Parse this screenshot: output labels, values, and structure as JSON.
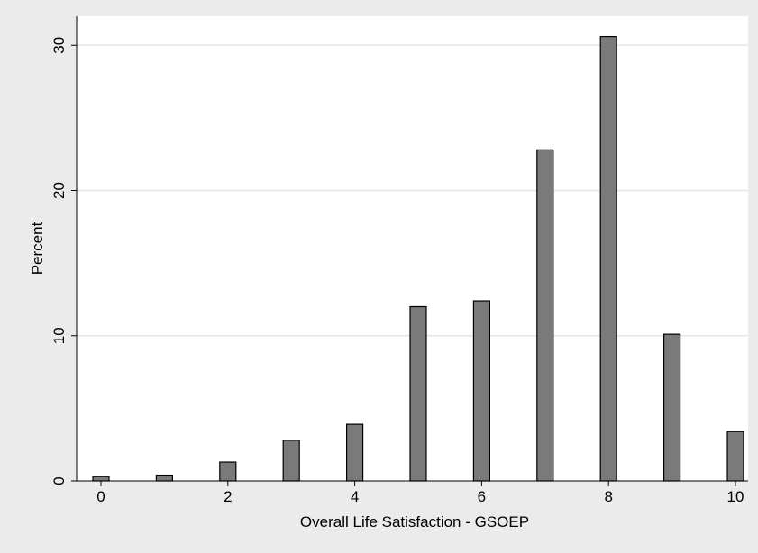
{
  "chart_data": {
    "type": "bar",
    "xlabel": "Overall Life Satisfaction - GSOEP",
    "ylabel": "Percent",
    "x": [
      0,
      1,
      2,
      3,
      4,
      5,
      6,
      7,
      8,
      9,
      10
    ],
    "values": [
      0.3,
      0.4,
      1.3,
      2.8,
      3.9,
      12.0,
      12.4,
      22.8,
      30.6,
      10.1,
      3.4
    ],
    "xlim": [
      -0.3,
      10.3
    ],
    "ylim": [
      0,
      32
    ],
    "x_ticks": [
      0,
      2,
      4,
      6,
      8,
      10
    ],
    "y_ticks": [
      0,
      10,
      20,
      30
    ],
    "grid": "horizontal",
    "colors": {
      "background": "#ebebeb",
      "plot_area": "#ffffff",
      "bar_fill": "#7a7a7a",
      "bar_stroke": "#000000",
      "grid": "#e6e6e6"
    }
  }
}
